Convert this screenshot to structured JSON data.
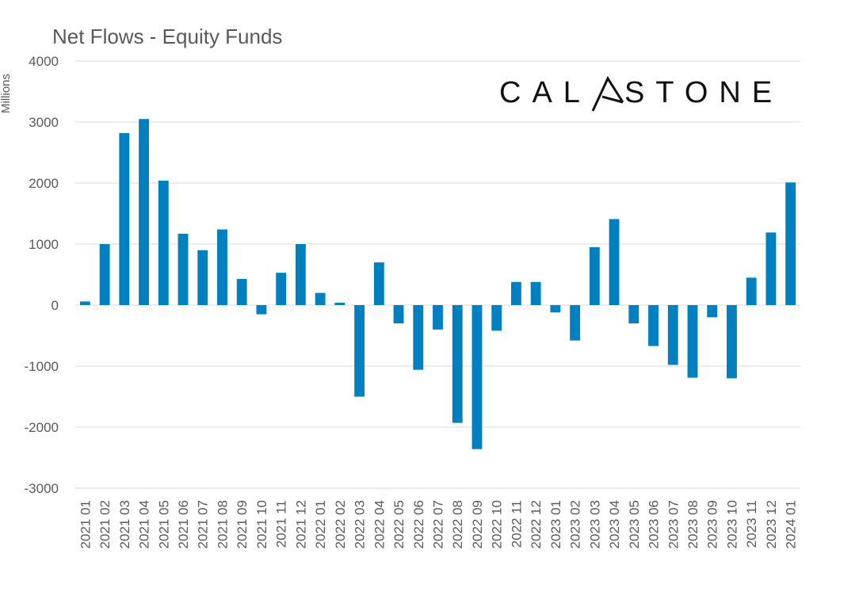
{
  "chart_data": {
    "type": "bar",
    "title": "Net Flows - Equity Funds",
    "ylabel": "Millions",
    "xlabel": "",
    "ylim": [
      -3000,
      4000
    ],
    "yticks": [
      4000,
      3000,
      2000,
      1000,
      0,
      -1000,
      -2000,
      -3000
    ],
    "grid": true,
    "bar_color": "#0080BF",
    "grid_color": "#D9D9D9",
    "categories": [
      "2021 01",
      "2021 02",
      "2021 03",
      "2021 04",
      "2021 05",
      "2021 06",
      "2021 07",
      "2021 08",
      "2021 09",
      "2021 10",
      "2021 11",
      "2021 12",
      "2022 01",
      "2022 02",
      "2022 03",
      "2022 04",
      "2022 05",
      "2022 06",
      "2022 07",
      "2022 08",
      "2022 09",
      "2022 10",
      "2022 11",
      "2022 12",
      "2023 01",
      "2023 02",
      "2023 03",
      "2023 04",
      "2023 05",
      "2023 06",
      "2023 07",
      "2023 08",
      "2023 09",
      "2023 10",
      "2023 11",
      "2023 12",
      "2024 01"
    ],
    "values": [
      60,
      1000,
      2820,
      3050,
      2040,
      1170,
      900,
      1240,
      430,
      -150,
      530,
      1000,
      200,
      40,
      -1500,
      700,
      -300,
      -1060,
      -400,
      -1930,
      -2360,
      -420,
      380,
      380,
      -120,
      -580,
      950,
      1410,
      -300,
      -670,
      -980,
      -1190,
      -200,
      -1200,
      450,
      1190,
      2010
    ]
  },
  "logo": {
    "text_left": "CAL",
    "text_right": "STONE"
  }
}
